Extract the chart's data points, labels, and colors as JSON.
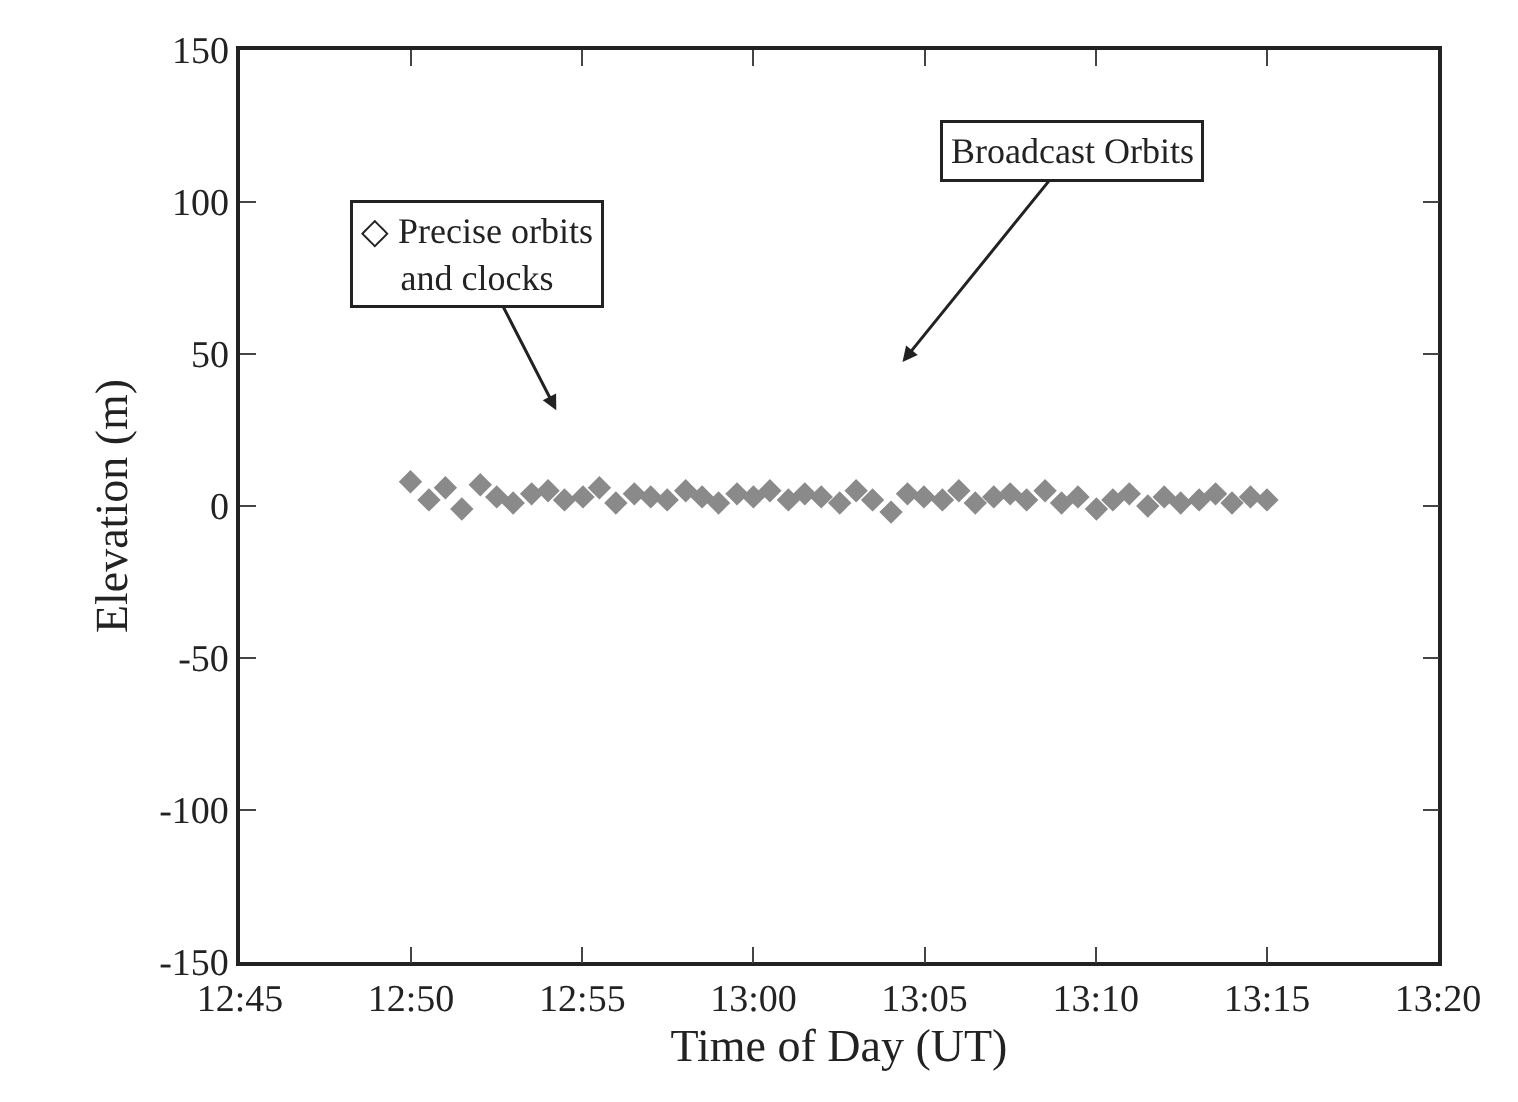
{
  "chart_data": {
    "type": "scatter",
    "xlabel": "Time of Day (UT)",
    "ylabel": "Elevation (m)",
    "x": [
      12.833,
      12.842,
      12.85,
      12.858,
      12.867,
      12.875,
      12.883,
      12.892,
      12.9,
      12.908,
      12.917,
      12.925,
      12.933,
      12.942,
      12.95,
      12.958,
      12.967,
      12.975,
      12.983,
      12.992,
      13.0,
      13.008,
      13.017,
      13.025,
      13.033,
      13.042,
      13.05,
      13.058,
      13.067,
      13.075,
      13.083,
      13.092,
      13.1,
      13.108,
      13.117,
      13.125,
      13.133,
      13.142,
      13.15,
      13.158,
      13.167,
      13.175,
      13.183,
      13.192,
      13.2,
      13.208,
      13.217,
      13.225,
      13.233,
      13.242,
      13.25
    ],
    "series": [
      {
        "color": "#8a8a8a",
        "values": [
          8,
          2,
          6,
          -1,
          7,
          3,
          1,
          4,
          5,
          2,
          3,
          6,
          1,
          4,
          3,
          2,
          5,
          3,
          1,
          4,
          3,
          5,
          2,
          4,
          3,
          1,
          5,
          2,
          -2,
          4,
          3,
          2,
          5,
          1,
          3,
          4,
          2,
          5,
          1,
          3,
          -1,
          2,
          4,
          0,
          3,
          1,
          2,
          4,
          1,
          3,
          2
        ]
      }
    ],
    "annotations": [
      "◇ Precise orbits\nand clocks",
      "Broadcast Orbits"
    ],
    "xlim": [
      12.75,
      13.3333
    ],
    "xticks": [
      {
        "value": 12.75,
        "label": "12:45"
      },
      {
        "value": 12.8333,
        "label": "12:50"
      },
      {
        "value": 12.9167,
        "label": "12:55"
      },
      {
        "value": 13.0,
        "label": "13:00"
      },
      {
        "value": 13.0833,
        "label": "13:05"
      },
      {
        "value": 13.1667,
        "label": "13:10"
      },
      {
        "value": 13.25,
        "label": "13:15"
      },
      {
        "value": 13.3333,
        "label": "13:20"
      }
    ],
    "ylim": [
      -150,
      150
    ],
    "yticks": [
      -150,
      -100,
      -50,
      0,
      50,
      100,
      150
    ],
    "marker": "diamond"
  }
}
